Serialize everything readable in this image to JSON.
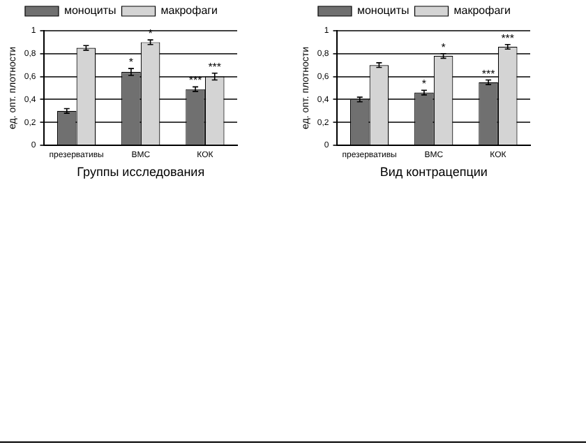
{
  "chart_data": [
    {
      "type": "bar",
      "xlabel": "Группы исследования",
      "ylabel": "ед. опт. плотности",
      "categories": [
        "презервативы",
        "ВМС",
        "КОК"
      ],
      "series": [
        {
          "name": "моноциты",
          "color": "#707070",
          "values": [
            0.3,
            0.64,
            0.49
          ],
          "errors": [
            0.02,
            0.03,
            0.02
          ]
        },
        {
          "name": "макрофаги",
          "color": "#d4d4d4",
          "values": [
            0.85,
            0.9,
            0.6
          ],
          "errors": [
            0.02,
            0.02,
            0.03
          ]
        }
      ],
      "ylim": [
        0,
        1
      ],
      "yticks": [
        {
          "value": 0,
          "label": "0"
        },
        {
          "value": 0.2,
          "label": "0,2"
        },
        {
          "value": 0.4,
          "label": "0,4"
        },
        {
          "value": 0.6,
          "label": "0,6"
        },
        {
          "value": 0.8,
          "label": "0,8"
        },
        {
          "value": 1,
          "label": "1"
        }
      ],
      "grid": "y",
      "legend": "top",
      "annotations": [
        {
          "text": "*",
          "x": "ВМС",
          "y": 0.64
        },
        {
          "text": "*",
          "x": "ВМС",
          "y": 0.9
        },
        {
          "text": "***",
          "x": "КОК",
          "y": 0.49
        },
        {
          "text": "***",
          "x": "КОК",
          "y": 0.6
        }
      ]
    },
    {
      "type": "bar",
      "xlabel": "Вид контрацепции",
      "ylabel": "ед. опт. плотности",
      "categories": [
        "презервативы",
        "ВМС",
        "КОК"
      ],
      "series": [
        {
          "name": "моноциты",
          "color": "#707070",
          "values": [
            0.4,
            0.46,
            0.55
          ],
          "errors": [
            0.02,
            0.02,
            0.02
          ]
        },
        {
          "name": "макрофаги",
          "color": "#d4d4d4",
          "values": [
            0.7,
            0.78,
            0.86
          ],
          "errors": [
            0.02,
            0.02,
            0.02
          ]
        }
      ],
      "ylim": [
        0,
        1
      ],
      "yticks": [
        {
          "value": 0,
          "label": "0"
        },
        {
          "value": 0.2,
          "label": "0,2"
        },
        {
          "value": 0.4,
          "label": "0,4"
        },
        {
          "value": 0.6,
          "label": "0,6"
        },
        {
          "value": 0.8,
          "label": "0,8"
        },
        {
          "value": 1,
          "label": "1"
        }
      ],
      "grid": "y",
      "legend": "top",
      "annotations": [
        {
          "text": "*",
          "x": "ВМС",
          "y": 0.46
        },
        {
          "text": "*",
          "x": "ВМС",
          "y": 0.78
        },
        {
          "text": "***",
          "x": "КОК",
          "y": 0.55
        },
        {
          "text": "***",
          "x": "КОК",
          "y": 0.86
        }
      ]
    }
  ]
}
